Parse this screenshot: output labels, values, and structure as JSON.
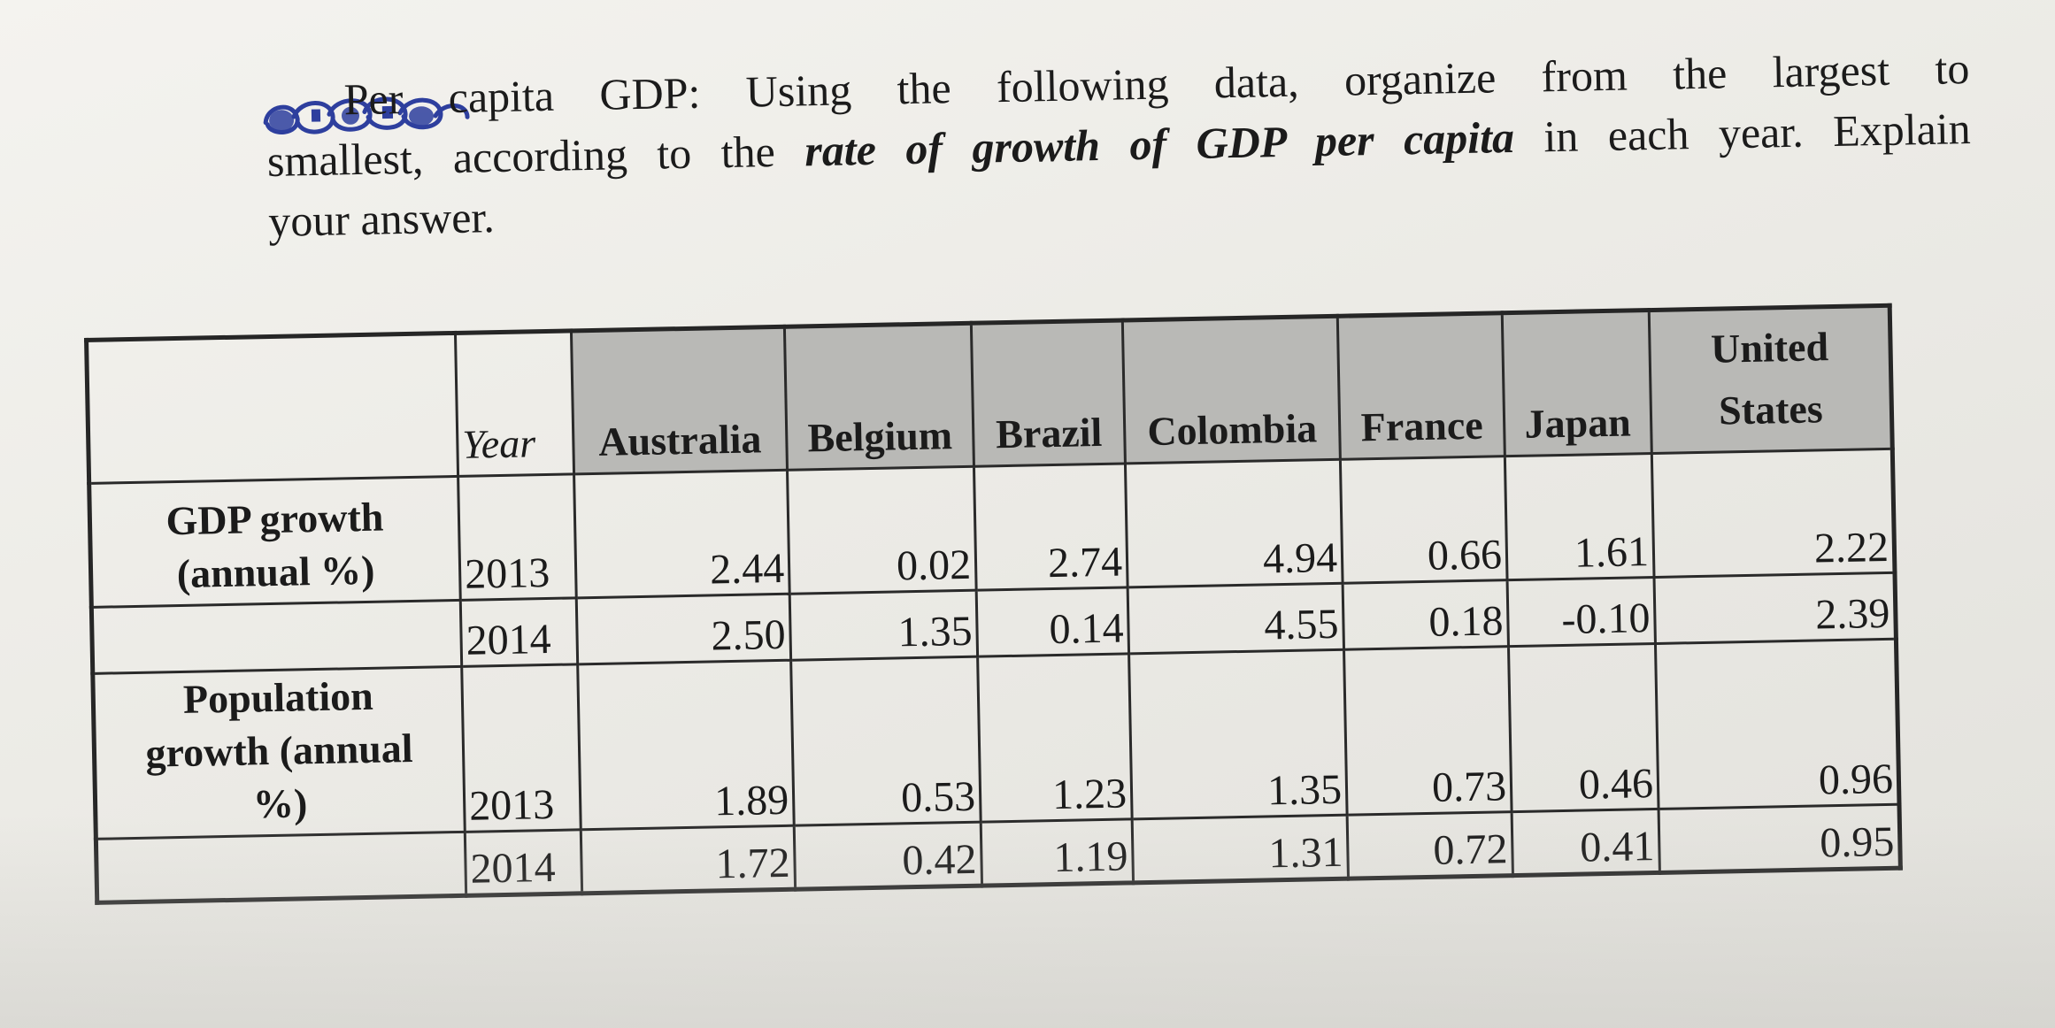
{
  "question": {
    "line1_rest": "Per capita GDP: Using the following data, organize from the largest to",
    "line2_prefix": "smallest, according to the",
    "line2_emph": "rate of growth of GDP per capita",
    "line2_suffix": "in each year. Explain",
    "line3": "your answer."
  },
  "table": {
    "year_header": "Year",
    "countries": [
      "Australia",
      "Belgium",
      "Brazil",
      "Colombia",
      "France",
      "Japan",
      "United States"
    ],
    "us_header_line1": "United",
    "us_header_line2": "States",
    "gdp": {
      "label": "GDP growth (annual %)",
      "label_line1": "GDP growth",
      "label_line2": "(annual %)",
      "rows": [
        {
          "year": "2013",
          "values": [
            "2.44",
            "0.02",
            "2.74",
            "4.94",
            "0.66",
            "1.61",
            "2.22"
          ]
        },
        {
          "year": "2014",
          "values": [
            "2.50",
            "1.35",
            "0.14",
            "4.55",
            "0.18",
            "-0.10",
            "2.39"
          ]
        }
      ]
    },
    "population": {
      "label_line1": "Population",
      "label_line2": "growth (annual",
      "label_line3": "%)",
      "rows": [
        {
          "year": "2013",
          "values": [
            "1.89",
            "0.53",
            "1.23",
            "1.35",
            "0.73",
            "0.46",
            "0.96"
          ]
        },
        {
          "year": "2014",
          "values": [
            "1.72",
            "0.42",
            "1.19",
            "1.31",
            "0.72",
            "0.41",
            "0.95"
          ]
        }
      ]
    }
  },
  "colors": {
    "ink_blue": "#2e3f9e",
    "header_gray": "#b9b9b6",
    "text": "#1b1b1b"
  }
}
